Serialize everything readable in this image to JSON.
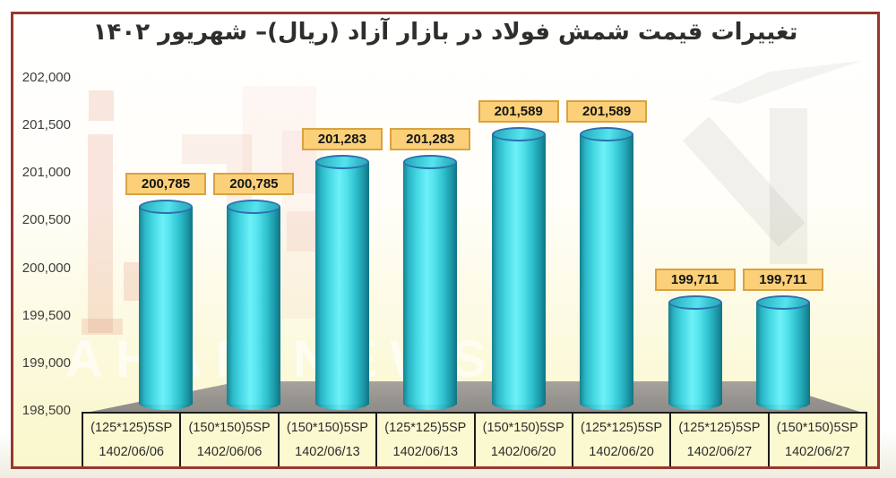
{
  "title": "تغییرات قیمت شمش فولاد در بازار آزاد (ریال)– شهریور ۱۴۰۲",
  "watermark": {
    "text": "AHAN NEWS"
  },
  "chart_data": {
    "type": "bar",
    "style": "3d-cylinder",
    "title": "تغییرات قیمت شمش فولاد در بازار آزاد (ریال)– شهریور ۱۴۰۲",
    "categories": [
      {
        "spec": "(125*125)5SP",
        "date": "1402/06/06"
      },
      {
        "spec": "(150*150)5SP",
        "date": "1402/06/06"
      },
      {
        "spec": "(150*150)5SP",
        "date": "1402/06/13"
      },
      {
        "spec": "(125*125)5SP",
        "date": "1402/06/13"
      },
      {
        "spec": "(150*150)5SP",
        "date": "1402/06/20"
      },
      {
        "spec": "(125*125)5SP",
        "date": "1402/06/20"
      },
      {
        "spec": "(125*125)5SP",
        "date": "1402/06/27"
      },
      {
        "spec": "(150*150)5SP",
        "date": "1402/06/27"
      }
    ],
    "values": [
      200785,
      200785,
      201283,
      201283,
      201589,
      201589,
      199711,
      199711
    ],
    "value_labels": [
      "200,785",
      "200,785",
      "201,283",
      "201,283",
      "201,589",
      "201,589",
      "199,711",
      "199,711"
    ],
    "ylim": [
      198500,
      202000
    ],
    "ytick_step": 500,
    "ytick_labels": [
      "202,000",
      "201,500",
      "201,000",
      "200,500",
      "200,000",
      "199,500",
      "199,000",
      "198,500"
    ],
    "grid": false,
    "legend": false
  },
  "colors": {
    "frame_border": "#96382f",
    "bar_face_light": "#6df0f8",
    "bar_face_dark": "#15808e",
    "bar_top_rim": "#2d6fb0",
    "value_label_bg": "#fbd078",
    "value_label_border": "#d9a242",
    "floor_gray": "#97938f",
    "cell_bg": "#fbf9d0",
    "table_border": "#1c1c1c",
    "background_bottom": "#faf8cf",
    "watermark_pink": "#e28270"
  }
}
